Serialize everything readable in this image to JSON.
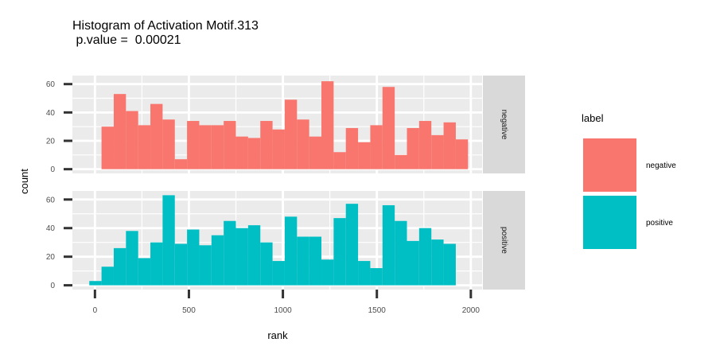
{
  "chart_data": {
    "type": "histogram",
    "title_lines": [
      "Histogram of Activation Motif.313",
      " p.value =  0.00021"
    ],
    "xlabel": "rank",
    "ylabel": "count",
    "xlim": [
      -120,
      2060
    ],
    "ylim": [
      -3,
      66
    ],
    "x_ticks": [
      0,
      500,
      1000,
      1500,
      2000
    ],
    "x_tick_labels": [
      "0",
      "500",
      "1000",
      "1500",
      "2000"
    ],
    "y_ticks": [
      0,
      20,
      40,
      60
    ],
    "y_tick_labels": [
      "0",
      "20",
      "40",
      "60"
    ],
    "bin_edges": [
      -30,
      35,
      100,
      165,
      230,
      295,
      360,
      425,
      490,
      555,
      620,
      685,
      750,
      815,
      880,
      945,
      1010,
      1075,
      1140,
      1205,
      1270,
      1335,
      1400,
      1465,
      1530,
      1595,
      1660,
      1725,
      1790,
      1855,
      1920,
      1985
    ],
    "panels": [
      {
        "strip": "negative",
        "color": "#F8766D",
        "counts": [
          0,
          30,
          53,
          41,
          31,
          46,
          35,
          7,
          34,
          31,
          31,
          34,
          23,
          22,
          34,
          28,
          49,
          35,
          23,
          62,
          12,
          29,
          19,
          31,
          58,
          10,
          29,
          34,
          24,
          33,
          21
        ]
      },
      {
        "strip": "positive",
        "color": "#00BFC4",
        "counts": [
          3,
          13,
          26,
          38,
          19,
          30,
          63,
          29,
          39,
          28,
          35,
          45,
          40,
          42,
          30,
          17,
          48,
          34,
          34,
          18,
          47,
          57,
          17,
          12,
          56,
          45,
          31,
          40,
          32,
          29,
          0
        ]
      }
    ],
    "legend": {
      "title": "label",
      "entries": [
        "negative",
        "positive"
      ],
      "colors": [
        "#F8766D",
        "#00BFC4"
      ],
      "position": "right"
    },
    "panel_background": "#EBEBEB",
    "grid_color": "#FFFFFF",
    "strip_background": "#D9D9D9",
    "grid": true
  }
}
